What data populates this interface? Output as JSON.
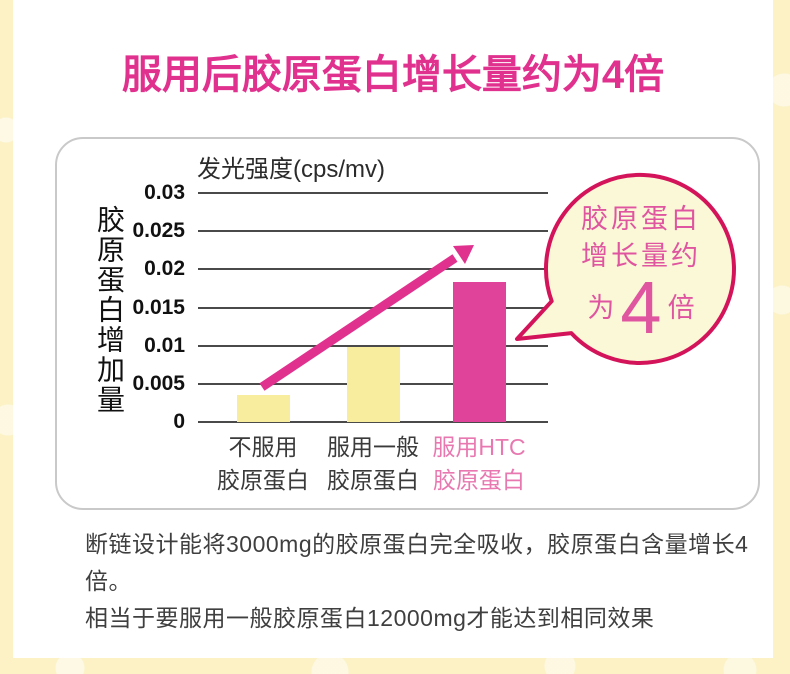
{
  "page": {
    "title": "服用后胶原蛋白增长量约为4倍",
    "footer_line1": "断链设计能将3000mg的胶原蛋白完全吸收，胶原蛋白含量增长4倍。",
    "footer_line2": "相当于要服用一般胶原蛋白12000mg才能达到相同效果"
  },
  "colors": {
    "title_pink": "#e0318e",
    "bar_yellow": "#f8ec9e",
    "bar_pink": "#e0439a",
    "label_pink": "#e878b0",
    "arrow_pink": "#e0318e",
    "bubble_border": "#d4145a",
    "bubble_fill": "#fbf8d8",
    "bubble_text": "#e0559f",
    "grid_line": "#4a4a4a",
    "text_dark": "#3f3f3f",
    "panel_border": "#c9c9c9",
    "page_bg": "#fcf2c6",
    "card_bg": "#ffffff"
  },
  "chart_data": {
    "type": "bar",
    "title": "发光强度(cps/mv)",
    "y_axis_label": "胶原蛋白增加量",
    "xlabel": "",
    "ylabel": "发光强度(cps/mv)",
    "ylim": [
      0,
      0.03
    ],
    "yticks": [
      0,
      0.005,
      0.01,
      0.015,
      0.02,
      0.025,
      0.03
    ],
    "grid": true,
    "legend_position": "none",
    "categories": [
      "不服用\n胶原蛋白",
      "服用一般\n胶原蛋白",
      "服用HTC\n胶原蛋白"
    ],
    "values": [
      0.0035,
      0.0098,
      0.0183
    ],
    "bar_colors": [
      "#f8ec9e",
      "#f8ec9e",
      "#e0439a"
    ],
    "category_colors": [
      "#3a3a3a",
      "#3a3a3a",
      "#e878b0"
    ],
    "annotation": {
      "line1": "胶原蛋白",
      "line2": "增长量约",
      "prefix": "为",
      "big": "4",
      "suffix": "倍"
    }
  }
}
